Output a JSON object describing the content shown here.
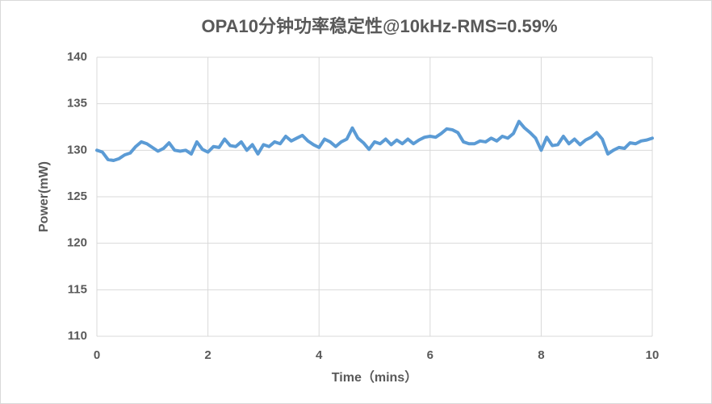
{
  "chart_data": {
    "type": "line",
    "title": "OPA10分钟功率稳定性@10kHz-RMS=0.59%",
    "x_label": "Time（mins）",
    "y_label": "Power(mW)",
    "xlim": [
      0,
      10
    ],
    "xticks": [
      0,
      2,
      4,
      6,
      8,
      10
    ],
    "ylim": [
      110,
      140
    ],
    "yticks": [
      110,
      115,
      120,
      125,
      130,
      135,
      140
    ],
    "grid": true,
    "x": [
      0,
      0.1,
      0.2,
      0.3,
      0.4,
      0.5,
      0.6,
      0.7,
      0.8,
      0.9,
      1,
      1.1,
      1.2,
      1.3,
      1.4,
      1.5,
      1.6,
      1.7,
      1.8,
      1.9,
      2,
      2.1,
      2.2,
      2.3,
      2.4,
      2.5,
      2.6,
      2.7,
      2.8,
      2.9,
      3,
      3.1,
      3.2,
      3.3,
      3.4,
      3.5,
      3.6,
      3.7,
      3.8,
      3.9,
      4,
      4.1,
      4.2,
      4.3,
      4.4,
      4.5,
      4.6,
      4.7,
      4.8,
      4.9,
      5,
      5.1,
      5.2,
      5.3,
      5.4,
      5.5,
      5.6,
      5.7,
      5.8,
      5.9,
      6,
      6.1,
      6.2,
      6.3,
      6.4,
      6.5,
      6.6,
      6.7,
      6.8,
      6.9,
      7,
      7.1,
      7.2,
      7.3,
      7.4,
      7.5,
      7.6,
      7.7,
      7.8,
      7.9,
      8,
      8.1,
      8.2,
      8.3,
      8.4,
      8.5,
      8.6,
      8.7,
      8.8,
      8.9,
      9,
      9.1,
      9.2,
      9.3,
      9.4,
      9.5,
      9.6,
      9.7,
      9.8,
      9.9,
      10
    ],
    "series": [
      {
        "color": "#5b9bd5",
        "values": [
          130.0,
          129.8,
          129.0,
          128.9,
          129.1,
          129.5,
          129.7,
          130.4,
          130.9,
          130.7,
          130.3,
          129.9,
          130.2,
          130.8,
          130.0,
          129.9,
          130.0,
          129.6,
          130.9,
          130.1,
          129.8,
          130.4,
          130.3,
          131.2,
          130.5,
          130.4,
          130.9,
          130.0,
          130.6,
          129.6,
          130.6,
          130.4,
          130.9,
          130.7,
          131.5,
          131.0,
          131.3,
          131.6,
          131.0,
          130.6,
          130.3,
          131.2,
          130.9,
          130.4,
          130.9,
          131.2,
          132.4,
          131.3,
          130.8,
          130.1,
          130.9,
          130.7,
          131.2,
          130.6,
          131.1,
          130.7,
          131.2,
          130.7,
          131.1,
          131.4,
          131.5,
          131.4,
          131.8,
          132.3,
          132.2,
          131.9,
          130.9,
          130.7,
          130.7,
          131.0,
          130.9,
          131.3,
          131.0,
          131.5,
          131.3,
          131.8,
          133.1,
          132.4,
          131.9,
          131.3,
          130.0,
          131.4,
          130.5,
          130.6,
          131.5,
          130.7,
          131.2,
          130.6,
          131.1,
          131.4,
          131.9,
          131.2,
          129.6,
          130.0,
          130.3,
          130.2,
          130.8,
          130.7,
          131.0,
          131.1,
          131.3
        ]
      }
    ]
  }
}
